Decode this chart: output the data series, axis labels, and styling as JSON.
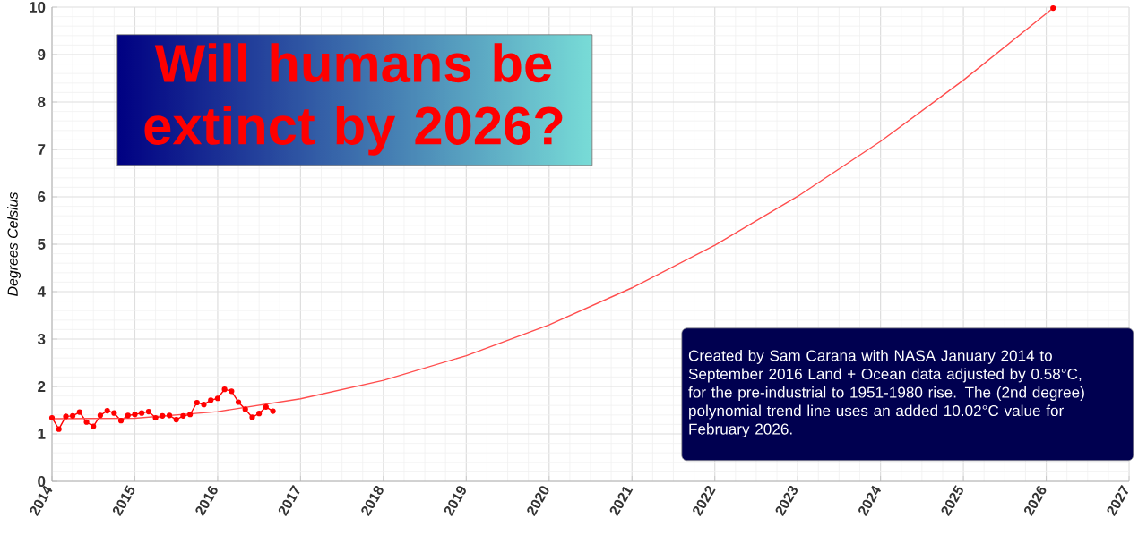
{
  "chart_data": {
    "type": "line",
    "title": "Will humans be extinct by 2026?",
    "ylabel": "Degrees Celsius",
    "annotations": [
      "Created by Sam Carana with NASA January 2014 to September 2016 Land + Ocean data adjusted by 0.58°C, for the pre-industrial to 1951-1980 rise. The (2nd degree) polynomial trend line uses an added 10.02°C value for February 2026."
    ],
    "xlim": [
      2014,
      2027
    ],
    "xticks": [
      2014,
      2015,
      2016,
      2017,
      2018,
      2019,
      2020,
      2021,
      2022,
      2023,
      2024,
      2025,
      2026,
      2027
    ],
    "ylim": [
      0,
      10
    ],
    "yticks": [
      0,
      1,
      2,
      3,
      4,
      5,
      6,
      7,
      8,
      9,
      10
    ],
    "grid": true,
    "line_style": "solid",
    "series": [
      {
        "color": "#ff0000",
        "marker": "circle",
        "x": [
          2014.0,
          2014.083,
          2014.167,
          2014.25,
          2014.333,
          2014.417,
          2014.5,
          2014.583,
          2014.667,
          2014.75,
          2014.833,
          2014.917,
          2015.0,
          2015.083,
          2015.167,
          2015.25,
          2015.333,
          2015.417,
          2015.5,
          2015.583,
          2015.667,
          2015.75,
          2015.833,
          2015.917,
          2016.0,
          2016.083,
          2016.167,
          2016.25,
          2016.333,
          2016.417,
          2016.5,
          2016.583,
          2016.667
        ],
        "values": [
          1.34,
          1.1,
          1.37,
          1.38,
          1.46,
          1.25,
          1.16,
          1.39,
          1.49,
          1.44,
          1.28,
          1.39,
          1.41,
          1.44,
          1.47,
          1.34,
          1.38,
          1.39,
          1.3,
          1.38,
          1.41,
          1.66,
          1.62,
          1.71,
          1.75,
          1.94,
          1.9,
          1.67,
          1.52,
          1.35,
          1.43,
          1.57,
          1.48
        ]
      },
      {
        "type": "line",
        "color": "#ff4d4d",
        "marker": "none",
        "x": [
          2014.0,
          2015.0,
          2016.0,
          2017.0,
          2018.0,
          2019.0,
          2020.0,
          2021.0,
          2022.0,
          2023.0,
          2024.0,
          2025.0,
          2026.083
        ],
        "values": [
          1.32,
          1.33,
          1.47,
          1.74,
          2.13,
          2.65,
          3.3,
          4.08,
          4.98,
          6.01,
          7.17,
          8.46,
          9.98
        ]
      },
      {
        "type": "scatter",
        "color": "#ff0000",
        "marker": "circle",
        "x": [
          2026.083
        ],
        "values": [
          9.98
        ]
      }
    ]
  }
}
